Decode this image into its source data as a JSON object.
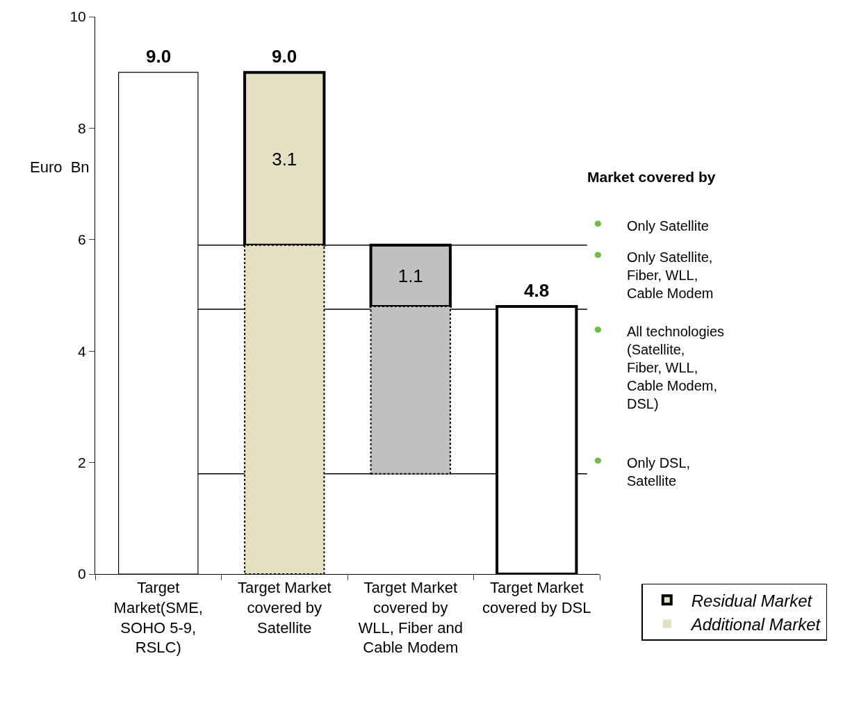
{
  "chart_data": {
    "type": "bar",
    "ylabel": "Euro  Bn",
    "categories": [
      "Target Market(SME, SOHO 5-9, RSLC)",
      "Target Market covered by Satellite",
      "Target Market covered by WLL, Fiber and Cable Modem",
      "Target Market covered by DSL"
    ],
    "series": [
      {
        "values": [
          9.0,
          null,
          null,
          null
        ],
        "base": [
          0,
          null,
          null,
          null
        ],
        "colors": [
          "#ffffff",
          null,
          null,
          null
        ],
        "line_style": "solid"
      },
      {
        "name": "Residual Market",
        "values": [
          null,
          3.1,
          1.1,
          4.8
        ],
        "base": [
          null,
          5.9,
          4.8,
          0
        ],
        "colors": [
          null,
          "#e3e1c1",
          "#c0c0c0",
          "#ffffff"
        ],
        "line_style": "solid",
        "value_labels": [
          null,
          "3.1",
          "1.1",
          null
        ]
      },
      {
        "name": "Additional Market",
        "values": [
          null,
          5.9,
          3.0,
          null
        ],
        "base": [
          null,
          0,
          1.8,
          null
        ],
        "colors": [
          null,
          "#e3e1c1",
          "#c0c0c0",
          null
        ],
        "line_style": "dotted"
      }
    ],
    "totals": [
      "9.0",
      "9.0",
      null,
      "4.8"
    ],
    "ylim": [
      0,
      10
    ],
    "yticks": [
      0,
      2,
      4,
      6,
      8,
      10
    ],
    "ref_lines": [
      {
        "axis": "y",
        "value": 5.9
      },
      {
        "axis": "y",
        "value": 4.75
      },
      {
        "axis": "y",
        "value": 1.8
      }
    ],
    "annotations": [
      "Market covered by",
      "Only Satellite",
      "Only Satellite, Fiber, WLL, Cable Modem",
      "All technologies (Satellite, Fiber, WLL, Cable Modem, DSL)",
      "Only DSL, Satellite"
    ],
    "grid": false,
    "legend": "bottom right"
  }
}
